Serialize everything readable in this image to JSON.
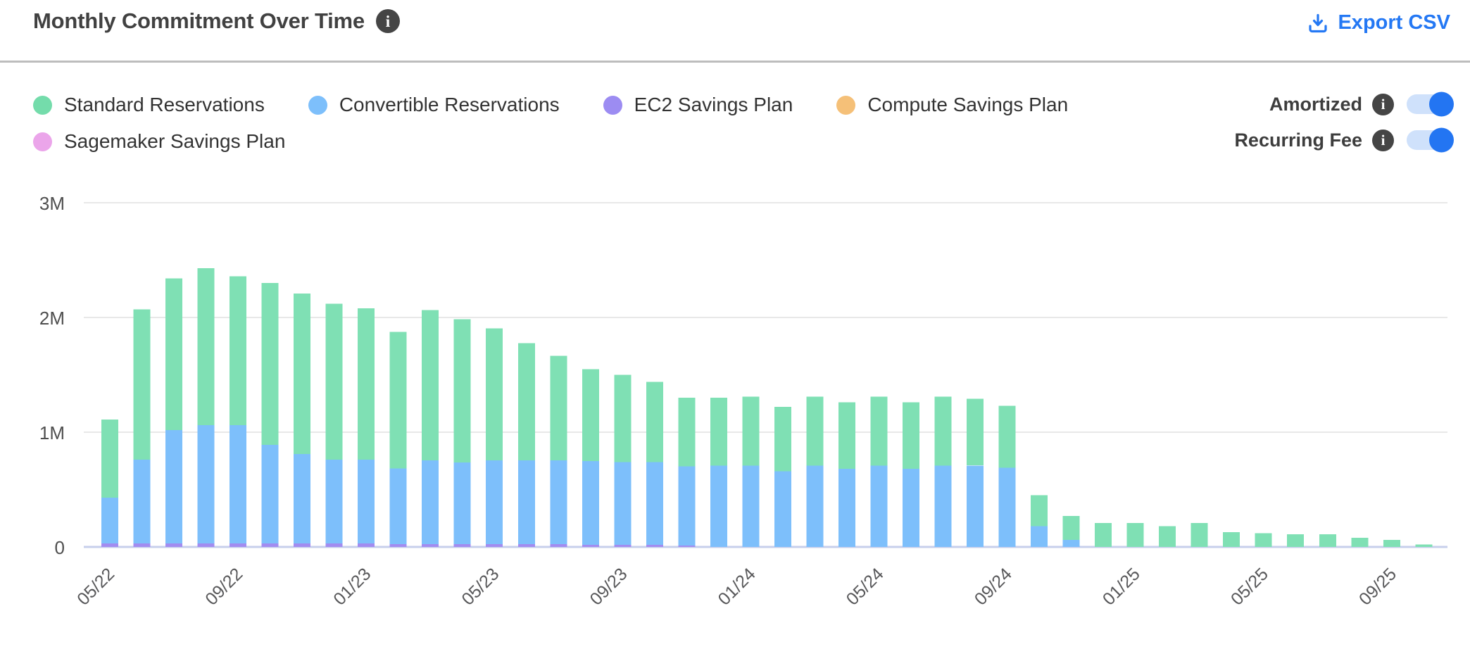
{
  "header": {
    "title": "Monthly Commitment Over Time",
    "title_info_icon": "info-icon",
    "export": {
      "label": "Export CSV",
      "icon": "download-icon",
      "color": "#2478f4"
    }
  },
  "controls": {
    "legend": [
      {
        "label": "Standard Reservations",
        "color": "#74dcab"
      },
      {
        "label": "Convertible Reservations",
        "color": "#7dbffb"
      },
      {
        "label": "EC2 Savings Plan",
        "color": "#9c8cf2"
      },
      {
        "label": "Compute Savings Plan",
        "color": "#f5c078"
      },
      {
        "label": "Sagemaker Savings Plan",
        "color": "#eba5ea"
      }
    ],
    "toggles": [
      {
        "label": "Amortized",
        "on": true,
        "info_icon": "info-icon"
      },
      {
        "label": "Recurring Fee",
        "on": true,
        "info_icon": "info-icon"
      }
    ],
    "toggle_colors": {
      "track": "#cfe1fb",
      "knob": "#2375f2"
    }
  },
  "chart_data": {
    "type": "bar",
    "stacked": true,
    "title": "Monthly Commitment Over Time",
    "values_unit": "USD millions",
    "ylim_millions": [
      0,
      3
    ],
    "y_ticks": [
      {
        "value": 0,
        "label": "0"
      },
      {
        "value": 1,
        "label": "1M"
      },
      {
        "value": 2,
        "label": "2M"
      },
      {
        "value": 3,
        "label": "3M"
      }
    ],
    "grid": "horizontal",
    "legend_position": "top-left",
    "x_tick_step": 4,
    "x_tick_rotation": -45,
    "categories": [
      "05/22",
      "06/22",
      "07/22",
      "08/22",
      "09/22",
      "10/22",
      "11/22",
      "12/22",
      "01/23",
      "02/23",
      "03/23",
      "04/23",
      "05/23",
      "06/23",
      "07/23",
      "08/23",
      "09/23",
      "10/23",
      "11/23",
      "12/23",
      "01/24",
      "02/24",
      "03/24",
      "04/24",
      "05/24",
      "06/24",
      "07/24",
      "08/24",
      "09/24",
      "10/24",
      "11/24",
      "12/24",
      "01/25",
      "02/25",
      "03/25",
      "04/25",
      "05/25",
      "06/25",
      "07/25",
      "08/25",
      "09/25",
      "10/25"
    ],
    "stack_order_bottom_to_top": [
      "EC2 Savings Plan",
      "Convertible Reservations",
      "Standard Reservations",
      "Compute Savings Plan",
      "Sagemaker Savings Plan"
    ],
    "series": [
      {
        "name": "Standard Reservations",
        "color": "#7fe0b4",
        "values": [
          0.68,
          1.31,
          1.32,
          1.37,
          1.3,
          1.41,
          1.4,
          1.36,
          1.32,
          1.19,
          1.31,
          1.25,
          1.15,
          1.02,
          0.91,
          0.8,
          0.76,
          0.7,
          0.6,
          0.59,
          0.6,
          0.56,
          0.6,
          0.58,
          0.6,
          0.58,
          0.6,
          0.58,
          0.54,
          0.27,
          0.21,
          0.21,
          0.21,
          0.18,
          0.21,
          0.13,
          0.12,
          0.11,
          0.11,
          0.08,
          0.06,
          0.02
        ]
      },
      {
        "name": "Convertible Reservations",
        "color": "#7dbffb",
        "values": [
          0.4,
          0.73,
          0.99,
          1.03,
          1.03,
          0.86,
          0.78,
          0.73,
          0.73,
          0.66,
          0.73,
          0.71,
          0.73,
          0.73,
          0.73,
          0.73,
          0.72,
          0.72,
          0.69,
          0.71,
          0.71,
          0.66,
          0.71,
          0.68,
          0.71,
          0.68,
          0.71,
          0.71,
          0.69,
          0.18,
          0.06,
          0,
          0,
          0,
          0,
          0,
          0,
          0,
          0,
          0,
          0,
          0
        ]
      },
      {
        "name": "EC2 Savings Plan",
        "color": "#a28cf0",
        "values": [
          0.03,
          0.03,
          0.03,
          0.03,
          0.03,
          0.03,
          0.03,
          0.03,
          0.03,
          0.025,
          0.025,
          0.025,
          0.025,
          0.025,
          0.025,
          0.02,
          0.02,
          0.02,
          0.012,
          0,
          0,
          0,
          0,
          0,
          0,
          0,
          0,
          0,
          0,
          0,
          0,
          0,
          0,
          0,
          0,
          0,
          0,
          0,
          0,
          0,
          0,
          0
        ]
      },
      {
        "name": "Compute Savings Plan",
        "color": "#f5c078",
        "values": [
          0,
          0,
          0,
          0,
          0,
          0,
          0,
          0,
          0,
          0,
          0,
          0,
          0,
          0,
          0,
          0,
          0,
          0,
          0,
          0,
          0,
          0,
          0,
          0,
          0,
          0,
          0,
          0,
          0,
          0,
          0,
          0,
          0,
          0,
          0,
          0,
          0,
          0,
          0,
          0,
          0,
          0
        ]
      },
      {
        "name": "Sagemaker Savings Plan",
        "color": "#eba5ea",
        "values": [
          0,
          0,
          0,
          0,
          0,
          0,
          0,
          0,
          0,
          0,
          0,
          0,
          0,
          0,
          0,
          0,
          0,
          0,
          0,
          0,
          0,
          0,
          0,
          0,
          0,
          0,
          0,
          0,
          0,
          0,
          0,
          0,
          0,
          0,
          0,
          0,
          0,
          0,
          0,
          0,
          0,
          0
        ]
      }
    ],
    "colors": {
      "gridline": "#e8e8e8",
      "baseline": "#c7cfeb",
      "y_tick_text": "#4f4f4f",
      "x_tick_text": "#58585a"
    }
  }
}
